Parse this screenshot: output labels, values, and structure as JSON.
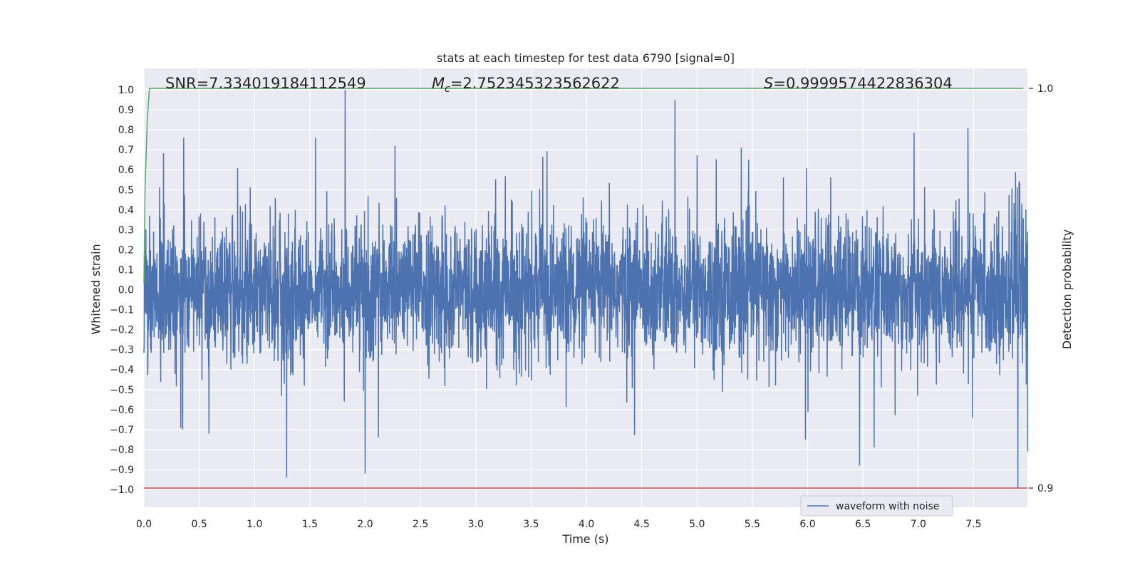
{
  "chart_data": {
    "type": "line",
    "title": "stats at each timestep for test data 6790 [signal=0]",
    "xlabel": "Time (s)",
    "ylabel": "Whitened strain",
    "y2label": "Detection probability",
    "xlim": [
      0.0,
      8.0
    ],
    "ylim": [
      -1.08,
      1.1
    ],
    "y2lim": [
      0.898,
      1.004
    ],
    "grid": true,
    "legend_position": "lower-right",
    "xticks": [
      "0.0",
      "0.5",
      "1.0",
      "1.5",
      "2.0",
      "2.5",
      "3.0",
      "3.5",
      "4.0",
      "4.5",
      "5.0",
      "5.5",
      "6.0",
      "6.5",
      "7.0",
      "7.5"
    ],
    "yticks": [
      "1.0",
      "0.9",
      "0.8",
      "0.7",
      "0.6",
      "0.5",
      "0.4",
      "0.3",
      "0.2",
      "0.1",
      "0.0",
      "−0.1",
      "−0.2",
      "−0.3",
      "−0.4",
      "−0.5",
      "−0.6",
      "−0.7",
      "−0.8",
      "−0.9",
      "−1.0"
    ],
    "y2ticks": [
      "1.0",
      "0.9"
    ],
    "annotations": {
      "snr": "SNR=7.334019184112549",
      "mc_symbol": "M",
      "mc_sub": "c",
      "mc_value": "=2.752345323562622",
      "s_symbol": "S",
      "s_value": "=0.9999574422836304"
    },
    "series": [
      {
        "name": "waveform with noise",
        "axis": "left",
        "color": "#4c72b0",
        "x_range": [
          0.0,
          7.99
        ],
        "envelope": "dense noise, typical amplitude about ±0.4, spikes reaching about ±0.9",
        "peaks": [
          {
            "x": 0.36,
            "y": 0.76
          },
          {
            "x": 1.82,
            "y": 1.0
          },
          {
            "x": 2.27,
            "y": 0.72
          },
          {
            "x": 4.8,
            "y": 0.95
          },
          {
            "x": 5.4,
            "y": 0.71
          },
          {
            "x": 7.45,
            "y": 0.81
          },
          {
            "x": 7.9,
            "y": 0.82
          },
          {
            "x": 1.29,
            "y": -0.94
          },
          {
            "x": 2.0,
            "y": -0.92
          },
          {
            "x": 2.12,
            "y": -0.74
          },
          {
            "x": 0.35,
            "y": -0.7
          },
          {
            "x": 5.98,
            "y": -0.75
          },
          {
            "x": 6.47,
            "y": -0.88
          },
          {
            "x": 6.6,
            "y": -0.79
          },
          {
            "x": 7.9,
            "y": -0.99
          },
          {
            "x": 7.99,
            "y": -0.81
          }
        ]
      },
      {
        "axis": "right",
        "color": "#55a868",
        "x": [
          0.0,
          0.01,
          0.03,
          0.05,
          0.06,
          7.95
        ],
        "y": [
          0.951,
          0.975,
          0.992,
          1.0,
          1.0,
          1.0
        ]
      },
      {
        "axis": "right",
        "color": "#c44e52",
        "x": [
          0.0,
          7.99
        ],
        "y": [
          0.9,
          0.9
        ]
      }
    ]
  }
}
